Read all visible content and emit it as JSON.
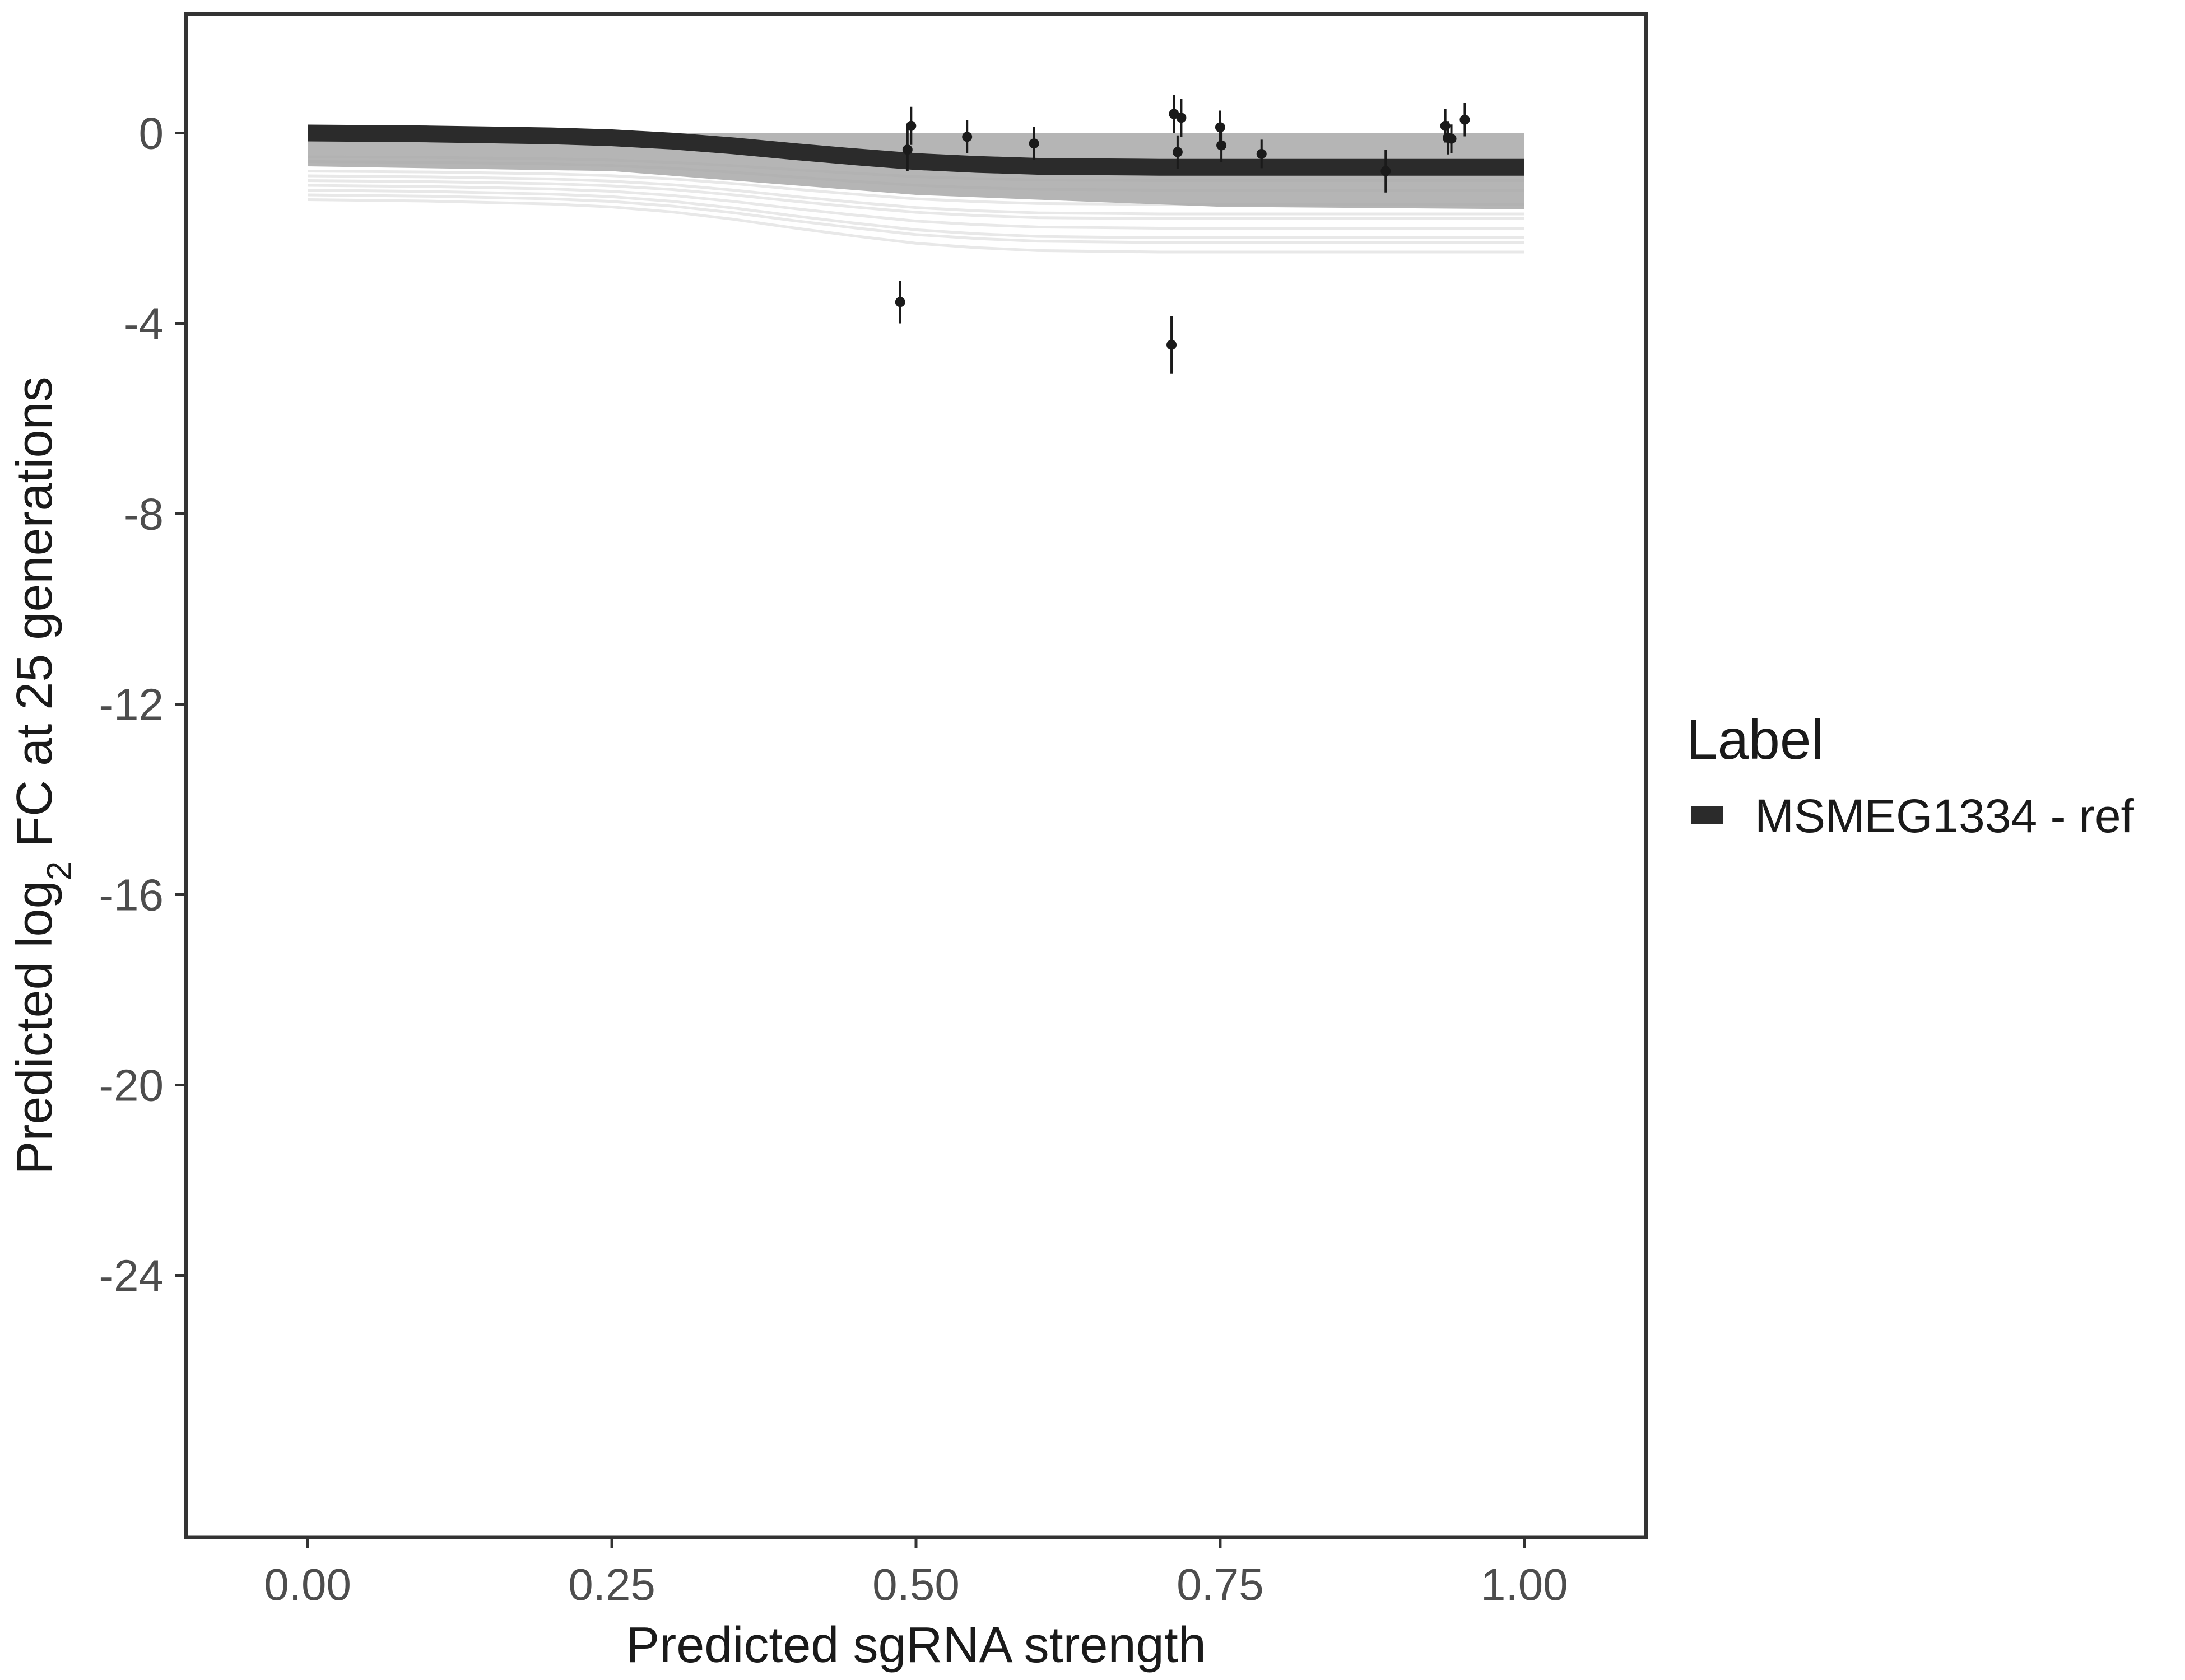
{
  "chart_data": {
    "type": "line",
    "xlabel": "Predicted sgRNA strength",
    "ylabel_parts": [
      "Predicted  log",
      "2",
      " FC at 25 generations"
    ],
    "xlim": [
      -0.1,
      1.1
    ],
    "ylim": [
      -29.5,
      2.5
    ],
    "x_ticks": [
      0.0,
      0.25,
      0.5,
      0.75,
      1.0
    ],
    "x_tick_labels": [
      "0.00",
      "0.25",
      "0.50",
      "0.75",
      "1.00"
    ],
    "y_ticks": [
      0,
      -4,
      -8,
      -12,
      -16,
      -20,
      -24
    ],
    "y_tick_labels": [
      "0",
      "-4",
      "-8",
      "-12",
      "-16",
      "-20",
      "-24"
    ],
    "grid": false,
    "legend": {
      "title": "Label",
      "position": "right",
      "entries": [
        {
          "name": "MSMEG1334 - ref",
          "color": "#2b2b2b"
        }
      ]
    },
    "fit_line": {
      "name": "MSMEG1334 - ref",
      "color": "#2b2b2b",
      "x": [
        0.0,
        0.1,
        0.2,
        0.25,
        0.3,
        0.35,
        0.4,
        0.45,
        0.5,
        0.55,
        0.6,
        0.65,
        0.7,
        0.75,
        0.8,
        0.9,
        1.0
      ],
      "y": [
        0.0,
        -0.02,
        -0.06,
        -0.1,
        -0.17,
        -0.27,
        -0.39,
        -0.5,
        -0.6,
        -0.66,
        -0.7,
        -0.71,
        -0.72,
        -0.72,
        -0.72,
        -0.72,
        -0.72
      ]
    },
    "ribbon": {
      "color": "#a8a8a8",
      "x": [
        0.0,
        0.25,
        0.5,
        0.75,
        1.0
      ],
      "upper": [
        0.0,
        0.0,
        0.0,
        0.0,
        0.0
      ],
      "lower": [
        -0.7,
        -0.8,
        -1.3,
        -1.55,
        -1.6
      ]
    },
    "posterior_draws": [
      {
        "start": -0.5,
        "end": -1.0
      },
      {
        "start": -0.6,
        "end": -1.2
      },
      {
        "start": -0.8,
        "end": -1.5
      },
      {
        "start": -0.9,
        "end": -1.7
      },
      {
        "start": -1.0,
        "end": -1.8
      },
      {
        "start": -1.1,
        "end": -2.0
      },
      {
        "start": -1.2,
        "end": -2.2
      },
      {
        "start": -1.3,
        "end": -2.3
      },
      {
        "start": -1.4,
        "end": -2.5
      }
    ],
    "points": [
      {
        "x": 0.487,
        "y": -3.55,
        "err": 0.45
      },
      {
        "x": 0.493,
        "y": -0.35,
        "err": 0.45
      },
      {
        "x": 0.496,
        "y": 0.15,
        "err": 0.4
      },
      {
        "x": 0.542,
        "y": -0.08,
        "err": 0.35
      },
      {
        "x": 0.597,
        "y": -0.22,
        "err": 0.35
      },
      {
        "x": 0.71,
        "y": -4.45,
        "err": 0.6
      },
      {
        "x": 0.712,
        "y": 0.4,
        "err": 0.4
      },
      {
        "x": 0.715,
        "y": -0.4,
        "err": 0.35
      },
      {
        "x": 0.718,
        "y": 0.32,
        "err": 0.4
      },
      {
        "x": 0.75,
        "y": 0.12,
        "err": 0.35
      },
      {
        "x": 0.751,
        "y": -0.26,
        "err": 0.35
      },
      {
        "x": 0.784,
        "y": -0.44,
        "err": 0.3
      },
      {
        "x": 0.886,
        "y": -0.8,
        "err": 0.45
      },
      {
        "x": 0.935,
        "y": 0.15,
        "err": 0.35
      },
      {
        "x": 0.937,
        "y": -0.1,
        "err": 0.35
      },
      {
        "x": 0.94,
        "y": -0.12,
        "err": 0.3
      },
      {
        "x": 0.951,
        "y": 0.28,
        "err": 0.35
      }
    ]
  }
}
